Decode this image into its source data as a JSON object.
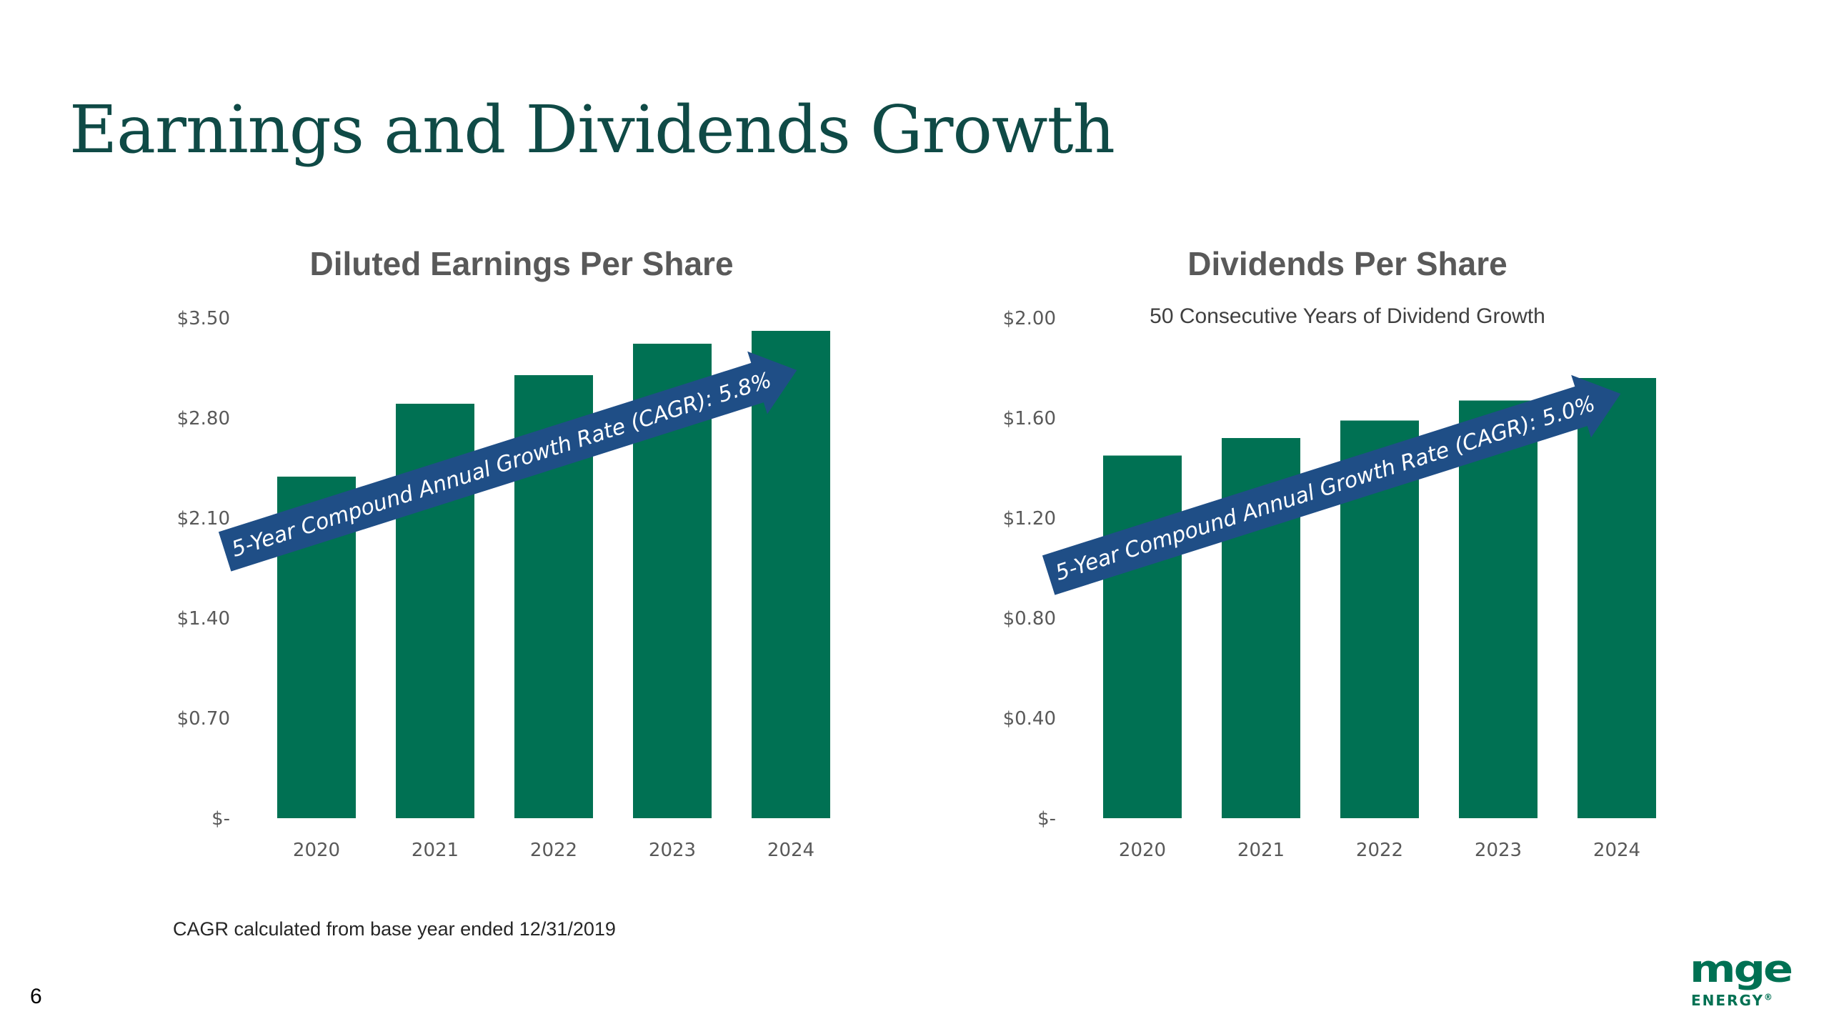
{
  "page": {
    "title": "Earnings and Dividends Growth",
    "footnote": "CAGR calculated from base year ended 12/31/2019",
    "page_number": "6",
    "logo": {
      "main": "mge",
      "sub": "ENERGY",
      "mark": "®"
    }
  },
  "colors": {
    "title": "#0f4a46",
    "bar": "#007153",
    "arrow": "#1f4e86",
    "logo": "#007153"
  },
  "chart_data": [
    {
      "type": "bar",
      "title": "Diluted Earnings Per Share",
      "subtitle": "",
      "categories": [
        "2020",
        "2021",
        "2022",
        "2023",
        "2024"
      ],
      "values": [
        2.39,
        2.9,
        3.1,
        3.32,
        3.41
      ],
      "ylim": [
        0,
        3.5
      ],
      "yticks": [
        0,
        0.7,
        1.4,
        2.1,
        2.8,
        3.5
      ],
      "ytick_labels": [
        "$-",
        "$0.70",
        "$1.40",
        "$2.10",
        "$2.80",
        "$3.50"
      ],
      "xlabel": "",
      "ylabel": "",
      "grid": false,
      "annotation": "5-Year Compound Annual Growth Rate (CAGR): 5.8%"
    },
    {
      "type": "bar",
      "title": "Dividends Per Share",
      "subtitle": "50 Consecutive Years of Dividend Growth",
      "categories": [
        "2020",
        "2021",
        "2022",
        "2023",
        "2024"
      ],
      "values": [
        1.45,
        1.52,
        1.59,
        1.67,
        1.76
      ],
      "ylim": [
        0,
        2.0
      ],
      "yticks": [
        0,
        0.4,
        0.8,
        1.2,
        1.6,
        2.0
      ],
      "ytick_labels": [
        "$-",
        "$0.40",
        "$0.80",
        "$1.20",
        "$1.60",
        "$2.00"
      ],
      "xlabel": "",
      "ylabel": "",
      "grid": false,
      "annotation": "5-Year Compound Annual Growth Rate (CAGR): 5.0%"
    }
  ]
}
